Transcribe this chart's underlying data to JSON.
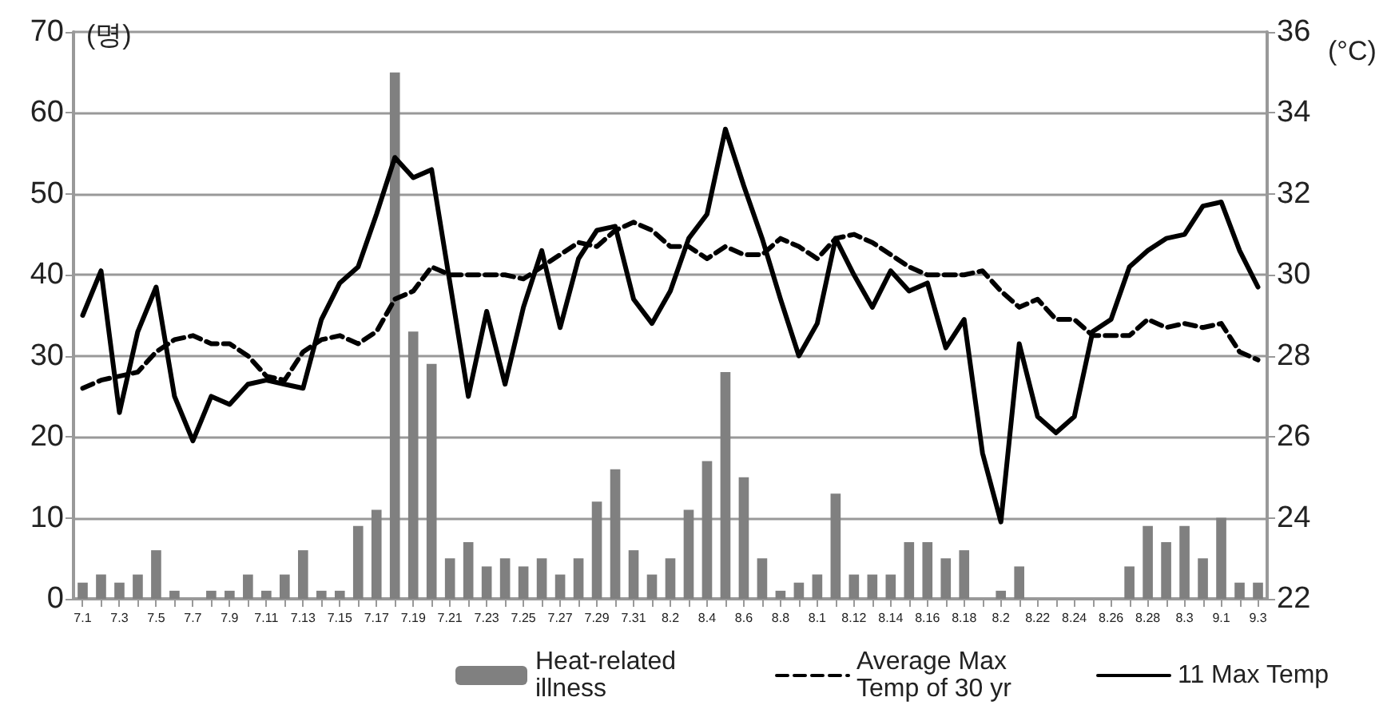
{
  "chart_data": {
    "type": "bar",
    "categories": [
      "7.1",
      null,
      "7.3",
      null,
      "7.5",
      null,
      "7.7",
      null,
      "7.9",
      null,
      "7.11",
      null,
      "7.13",
      null,
      "7.15",
      null,
      "7.17",
      null,
      "7.19",
      null,
      "7.21",
      null,
      "7.23",
      null,
      "7.25",
      null,
      "7.27",
      null,
      "7.29",
      null,
      "7.31",
      null,
      "8.2",
      null,
      "8.4",
      null,
      "8.6",
      null,
      "8.8",
      null,
      "8.1",
      null,
      "8.12",
      null,
      "8.14",
      null,
      "8.16",
      null,
      "8.18",
      null,
      "8.2",
      null,
      "8.22",
      null,
      "8.24",
      null,
      "8.26",
      null,
      "8.28",
      null,
      "8.3",
      null,
      "9.1",
      null,
      "9.3"
    ],
    "series": [
      {
        "name": "Heat-related illness",
        "color": "#808080",
        "values": [
          2,
          3,
          2,
          3,
          6,
          1,
          0,
          1,
          1,
          3,
          1,
          3,
          6,
          1,
          1,
          9,
          11,
          65,
          33,
          29,
          5,
          7,
          4,
          5,
          4,
          5,
          3,
          5,
          12,
          16,
          6,
          3,
          5,
          11,
          17,
          28,
          15,
          5,
          1,
          2,
          3,
          13,
          3,
          3,
          3,
          7,
          7,
          5,
          6,
          0,
          1,
          4,
          0,
          0,
          0,
          0,
          0,
          4,
          9,
          7,
          9,
          5,
          10,
          2,
          2
        ]
      },
      {
        "name": "Average Max Temp of 30 yr",
        "type": "line",
        "axis": "y2",
        "line_style": "dashed",
        "color": "#000000",
        "values": [
          27.2,
          27.4,
          27.5,
          27.6,
          28.1,
          28.4,
          28.5,
          28.3,
          28.3,
          28.0,
          27.5,
          27.4,
          28.1,
          28.4,
          28.5,
          28.3,
          28.6,
          29.4,
          29.6,
          30.2,
          30.0,
          30.0,
          30.0,
          30.0,
          29.9,
          30.2,
          30.5,
          30.8,
          30.7,
          31.1,
          31.3,
          31.1,
          30.7,
          30.7,
          30.4,
          30.7,
          30.5,
          30.5,
          30.9,
          30.7,
          30.4,
          30.9,
          31.0,
          30.8,
          30.5,
          30.2,
          30.0,
          30.0,
          30.0,
          30.1,
          29.6,
          29.2,
          29.4,
          28.9,
          28.9,
          28.5,
          28.5,
          28.5,
          28.9,
          28.7,
          28.8,
          28.7,
          28.8,
          28.1,
          27.9
        ]
      },
      {
        "name": "11 Max Temp",
        "type": "line",
        "axis": "y2",
        "line_style": "solid",
        "color": "#000000",
        "values": [
          29.0,
          30.1,
          26.6,
          28.6,
          29.7,
          27.0,
          25.9,
          27.0,
          26.8,
          27.3,
          27.4,
          27.3,
          27.2,
          28.9,
          29.8,
          30.2,
          31.5,
          32.9,
          32.4,
          32.6,
          29.8,
          27.0,
          29.1,
          27.3,
          29.2,
          30.6,
          28.7,
          30.4,
          31.1,
          31.2,
          29.4,
          28.8,
          29.6,
          30.9,
          31.5,
          33.6,
          32.2,
          30.9,
          29.4,
          28.0,
          28.8,
          30.9,
          30.0,
          29.2,
          30.1,
          29.6,
          29.8,
          28.2,
          28.9,
          25.6,
          23.9,
          28.3,
          26.5,
          26.1,
          26.5,
          28.6,
          28.9,
          30.2,
          30.6,
          30.9,
          31.0,
          31.7,
          31.8,
          30.6,
          29.7
        ]
      }
    ],
    "ylabel": "(명)",
    "y2label": "(°C)",
    "ylim": [
      0,
      70
    ],
    "yticks": [
      0,
      10,
      20,
      30,
      40,
      50,
      60,
      70
    ],
    "y2lim": [
      22,
      36
    ],
    "y2ticks": [
      22,
      24,
      26,
      28,
      30,
      32,
      34,
      36
    ],
    "grid": "y",
    "legend": "bottom",
    "marker": "none"
  }
}
